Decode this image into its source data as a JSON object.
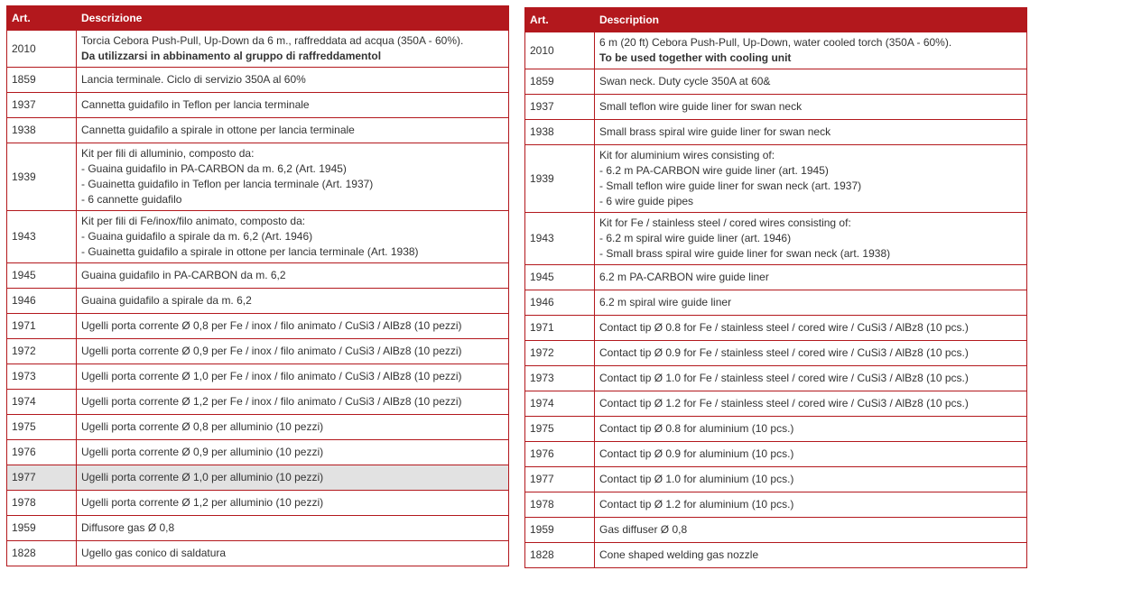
{
  "tables": [
    {
      "id": "it",
      "headers": {
        "art": "Art.",
        "desc": "Descrizione"
      },
      "rows": [
        {
          "art": "2010",
          "lines": [
            {
              "text": "Torcia Cebora Push-Pull, Up-Down da 6 m., raffreddata ad acqua (350A - 60%).",
              "bold": false
            },
            {
              "text": "Da utilizzarsi in abbinamento al gruppo di raffreddamentol",
              "bold": true
            }
          ]
        },
        {
          "art": "1859",
          "lines": [
            {
              "text": "Lancia terminale. Ciclo di servizio 350A al 60%",
              "bold": false
            }
          ]
        },
        {
          "art": "1937",
          "lines": [
            {
              "text": "Cannetta guidafilo in Teflon per lancia terminale",
              "bold": false
            }
          ]
        },
        {
          "art": "1938",
          "lines": [
            {
              "text": "Cannetta guidafilo a spirale in ottone per lancia terminale",
              "bold": false
            }
          ]
        },
        {
          "art": "1939",
          "lines": [
            {
              "text": "Kit per fili di alluminio, composto da:",
              "bold": false
            },
            {
              "text": "- Guaina guidafilo in PA-CARBON da m. 6,2 (Art. 1945)",
              "bold": false
            },
            {
              "text": "- Guainetta guidafilo in Teflon per lancia terminale (Art. 1937)",
              "bold": false
            },
            {
              "text": "- 6 cannette guidafilo",
              "bold": false
            }
          ]
        },
        {
          "art": "1943",
          "lines": [
            {
              "text": "Kit per fili di Fe/inox/filo animato, composto da:",
              "bold": false
            },
            {
              "text": "- Guaina guidafilo a spirale da m. 6,2 (Art. 1946)",
              "bold": false
            },
            {
              "text": "- Guainetta guidafilo a spirale in ottone per lancia terminale (Art. 1938)",
              "bold": false
            }
          ]
        },
        {
          "art": "1945",
          "lines": [
            {
              "text": "Guaina guidafilo in PA-CARBON da m. 6,2",
              "bold": false
            }
          ]
        },
        {
          "art": "1946",
          "lines": [
            {
              "text": "Guaina guidafilo a spirale da m. 6,2",
              "bold": false
            }
          ]
        },
        {
          "art": "1971",
          "lines": [
            {
              "text": "Ugelli porta corrente Ø 0,8 per Fe / inox / filo animato / CuSi3 / AlBz8 (10 pezzi)",
              "bold": false
            }
          ]
        },
        {
          "art": "1972",
          "lines": [
            {
              "text": "Ugelli porta corrente Ø 0,9 per Fe / inox / filo animato / CuSi3 / AlBz8 (10 pezzi)",
              "bold": false
            }
          ]
        },
        {
          "art": "1973",
          "lines": [
            {
              "text": "Ugelli porta corrente Ø 1,0 per Fe / inox / filo animato / CuSi3 / AlBz8 (10 pezzi)",
              "bold": false
            }
          ]
        },
        {
          "art": "1974",
          "lines": [
            {
              "text": "Ugelli porta corrente Ø 1,2 per Fe / inox / filo animato / CuSi3 / AlBz8 (10 pezzi)",
              "bold": false
            }
          ]
        },
        {
          "art": "1975",
          "lines": [
            {
              "text": "Ugelli porta corrente Ø 0,8 per alluminio (10 pezzi)",
              "bold": false
            }
          ]
        },
        {
          "art": "1976",
          "lines": [
            {
              "text": "Ugelli porta corrente Ø 0,9 per alluminio (10 pezzi)",
              "bold": false
            }
          ]
        },
        {
          "art": "1977",
          "highlight": true,
          "lines": [
            {
              "text": "Ugelli porta corrente Ø 1,0 per alluminio (10 pezzi)",
              "bold": false
            }
          ]
        },
        {
          "art": "1978",
          "lines": [
            {
              "text": "Ugelli porta corrente Ø 1,2 per alluminio (10 pezzi)",
              "bold": false
            }
          ]
        },
        {
          "art": "1959",
          "lines": [
            {
              "text": "Diffusore gas Ø 0,8",
              "bold": false
            }
          ]
        },
        {
          "art": "1828",
          "lines": [
            {
              "text": "Ugello gas conico di saldatura",
              "bold": false
            }
          ]
        }
      ]
    },
    {
      "id": "en",
      "headers": {
        "art": "Art.",
        "desc": "Description"
      },
      "rows": [
        {
          "art": "2010",
          "lines": [
            {
              "text": "6 m (20 ft) Cebora Push-Pull, Up-Down, water cooled torch (350A - 60%).",
              "bold": false
            },
            {
              "text": "To be used together with cooling unit",
              "bold": true
            }
          ]
        },
        {
          "art": "1859",
          "lines": [
            {
              "text": "Swan neck. Duty cycle 350A at 60&",
              "bold": false
            }
          ]
        },
        {
          "art": "1937",
          "lines": [
            {
              "text": "Small teflon wire guide liner for swan neck",
              "bold": false
            }
          ]
        },
        {
          "art": "1938",
          "lines": [
            {
              "text": "Small brass spiral wire guide liner for swan neck",
              "bold": false
            }
          ]
        },
        {
          "art": "1939",
          "lines": [
            {
              "text": "Kit for aluminium wires consisting of:",
              "bold": false
            },
            {
              "text": "- 6.2 m PA-CARBON wire guide liner (art. 1945)",
              "bold": false
            },
            {
              "text": "- Small teflon wire guide liner for swan neck (art. 1937)",
              "bold": false
            },
            {
              "text": "- 6 wire guide pipes",
              "bold": false
            }
          ]
        },
        {
          "art": "1943",
          "lines": [
            {
              "text": "Kit for Fe / stainless steel / cored wires consisting of:",
              "bold": false
            },
            {
              "text": "- 6.2 m spiral wire guide liner (art. 1946)",
              "bold": false
            },
            {
              "text": "- Small brass spiral wire guide liner for swan neck (art. 1938)",
              "bold": false
            }
          ]
        },
        {
          "art": "1945",
          "lines": [
            {
              "text": "6.2 m PA-CARBON wire guide liner",
              "bold": false
            }
          ]
        },
        {
          "art": "1946",
          "lines": [
            {
              "text": "6.2 m spiral wire guide liner",
              "bold": false
            }
          ]
        },
        {
          "art": "1971",
          "lines": [
            {
              "text": "Contact tip Ø 0.8 for Fe / stainless steel / cored wire / CuSi3 / AlBz8 (10 pcs.)",
              "bold": false
            }
          ]
        },
        {
          "art": "1972",
          "lines": [
            {
              "text": "Contact tip Ø 0.9 for Fe / stainless steel / cored wire / CuSi3 / AlBz8 (10 pcs.)",
              "bold": false
            }
          ]
        },
        {
          "art": "1973",
          "lines": [
            {
              "text": "Contact tip Ø 1.0 for Fe / stainless steel / cored wire / CuSi3 / AlBz8 (10 pcs.)",
              "bold": false
            }
          ]
        },
        {
          "art": "1974",
          "lines": [
            {
              "text": "Contact tip Ø 1.2 for Fe / stainless steel / cored wire / CuSi3 / AlBz8 (10 pcs.)",
              "bold": false
            }
          ]
        },
        {
          "art": "1975",
          "lines": [
            {
              "text": "Contact tip Ø 0.8 for aluminium (10 pcs.)",
              "bold": false
            }
          ]
        },
        {
          "art": "1976",
          "lines": [
            {
              "text": "Contact tip Ø 0.9 for aluminium (10 pcs.)",
              "bold": false
            }
          ]
        },
        {
          "art": "1977",
          "lines": [
            {
              "text": "Contact tip Ø 1.0 for aluminium (10 pcs.)",
              "bold": false
            }
          ]
        },
        {
          "art": "1978",
          "lines": [
            {
              "text": "Contact tip Ø 1.2 for aluminium (10 pcs.)",
              "bold": false
            }
          ]
        },
        {
          "art": "1959",
          "lines": [
            {
              "text": "Gas diffuser Ø 0,8",
              "bold": false
            }
          ]
        },
        {
          "art": "1828",
          "lines": [
            {
              "text": "Cone shaped welding gas nozzle",
              "bold": false
            }
          ]
        }
      ]
    }
  ],
  "colors": {
    "header_bg": "#b3181d",
    "border": "#b3181d",
    "highlight_row": "#e2e2e2"
  }
}
